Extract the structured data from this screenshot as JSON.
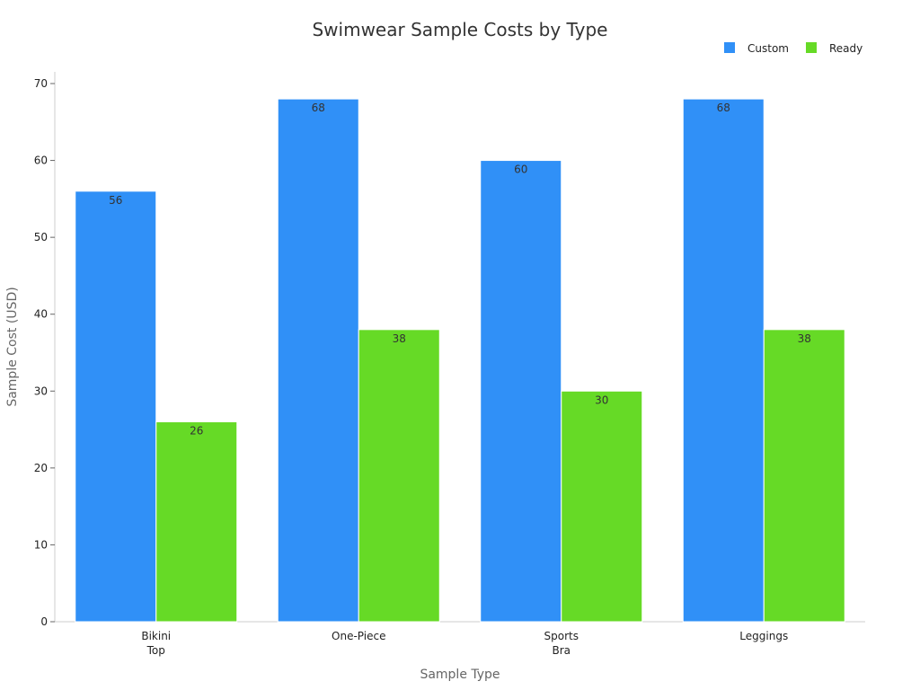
{
  "chart_data": {
    "type": "bar",
    "title": "Swimwear Sample Costs by Type",
    "xlabel": "Sample Type",
    "ylabel": "Sample Cost (USD)",
    "categories": [
      [
        "Bikini",
        "Top"
      ],
      [
        "One-Piece"
      ],
      [
        "Sports",
        "Bra"
      ],
      [
        "Leggings"
      ]
    ],
    "series": [
      {
        "name": "Custom",
        "color": "#3090f7",
        "values": [
          56,
          68,
          60,
          68
        ]
      },
      {
        "name": "Ready",
        "color": "#66da26",
        "values": [
          26,
          38,
          30,
          38
        ]
      }
    ],
    "ylim": [
      0,
      70
    ],
    "yticks": [
      0,
      10,
      20,
      30,
      40,
      50,
      60,
      70
    ],
    "grid": false,
    "legend_position": "top-right",
    "data_labels": true
  }
}
